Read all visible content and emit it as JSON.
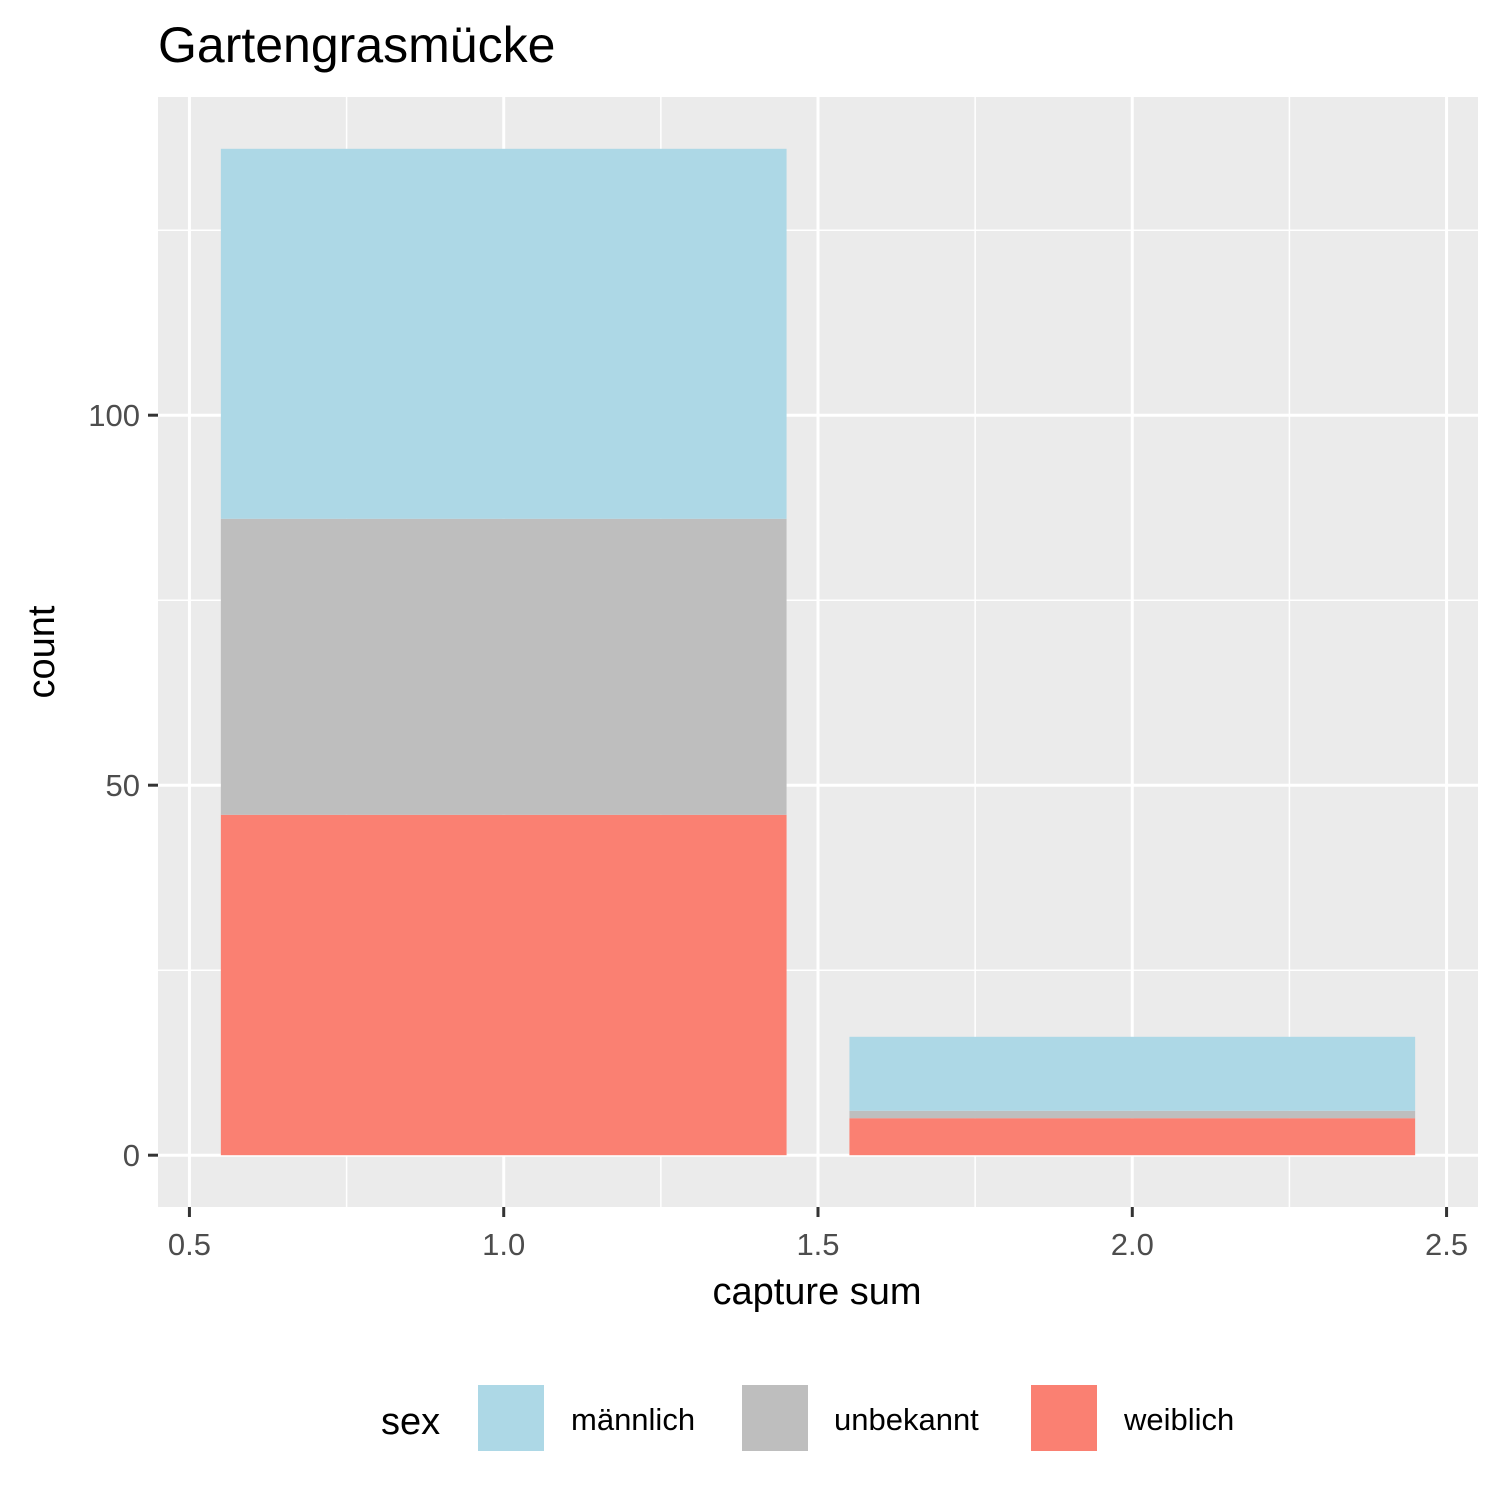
{
  "chart_data": {
    "type": "bar",
    "stacked": true,
    "title": "Gartengrasmücke",
    "xlabel": "capture sum",
    "ylabel": "count",
    "x": [
      1,
      2
    ],
    "x_ticks": [
      "0.5",
      "1.0",
      "1.5",
      "2.0",
      "2.5"
    ],
    "x_tick_values": [
      0.5,
      1.0,
      1.5,
      2.0,
      2.5
    ],
    "y_ticks": [
      "0",
      "50",
      "100"
    ],
    "y_tick_values": [
      0,
      50,
      100
    ],
    "xlim": [
      0.45,
      2.55
    ],
    "ylim": [
      -7,
      143
    ],
    "bar_width": 0.9,
    "grid": true,
    "background": "#ebebeb",
    "series": [
      {
        "name": "weiblich",
        "color": "#fa8072",
        "values": [
          46,
          5
        ]
      },
      {
        "name": "unbekannt",
        "color": "#bebebe",
        "values": [
          40,
          1
        ]
      },
      {
        "name": "männlich",
        "color": "#add8e6",
        "values": [
          50,
          10
        ]
      }
    ],
    "legend": {
      "title": "sex",
      "position": "bottom",
      "order": [
        "männlich",
        "unbekannt",
        "weiblich"
      ]
    }
  }
}
